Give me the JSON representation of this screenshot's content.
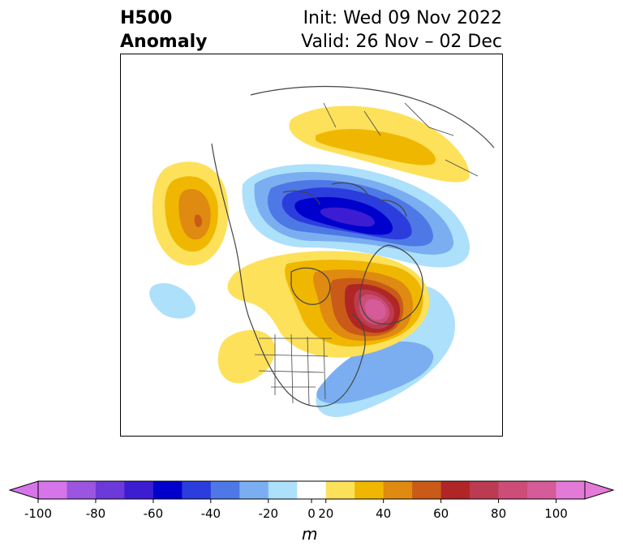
{
  "title": {
    "left_line1": "H500",
    "left_line2": "Anomaly",
    "right_line1": "Init: Wed 09 Nov 2022",
    "right_line2": "Valid: 26 Nov – 02 Dec"
  },
  "colorbar": {
    "unit": "m",
    "ticks": [
      "-100",
      "-80",
      "-60",
      "-40",
      "-20",
      "0",
      "20",
      "40",
      "60",
      "80",
      "100"
    ],
    "levels": [
      -100,
      -90,
      -80,
      -70,
      -60,
      -50,
      -40,
      -30,
      -20,
      -10,
      10,
      20,
      30,
      40,
      50,
      60,
      70,
      80,
      90,
      100
    ],
    "colors": [
      "#d674ea",
      "#9b55e0",
      "#6b3ad8",
      "#3c1dd2",
      "#0000cd",
      "#2b3ddd",
      "#4e78e6",
      "#7aaef0",
      "#ade0fa",
      "#ffffff",
      "#fde15a",
      "#f0b700",
      "#df8a10",
      "#c95a18",
      "#b02626",
      "#bb3c52",
      "#cc4d78",
      "#d55c99",
      "#e47ad8"
    ],
    "extend_min_color": "#d674ea",
    "extend_max_color": "#e47ad8"
  },
  "map": {
    "projection": "polar-stereographic",
    "region": "North America / Arctic",
    "boundaries_color": "#444444",
    "features": [
      {
        "sign": "positive",
        "peak": 60,
        "location": "Greenland / Baffin region"
      },
      {
        "sign": "negative",
        "peak": -60,
        "location": "Siberian Arctic"
      },
      {
        "sign": "positive",
        "peak": 40,
        "location": "Gulf of Alaska"
      },
      {
        "sign": "positive",
        "peak": 20,
        "location": "Northern Eurasia"
      },
      {
        "sign": "negative",
        "peak": -30,
        "location": "Eastern United States"
      }
    ]
  }
}
